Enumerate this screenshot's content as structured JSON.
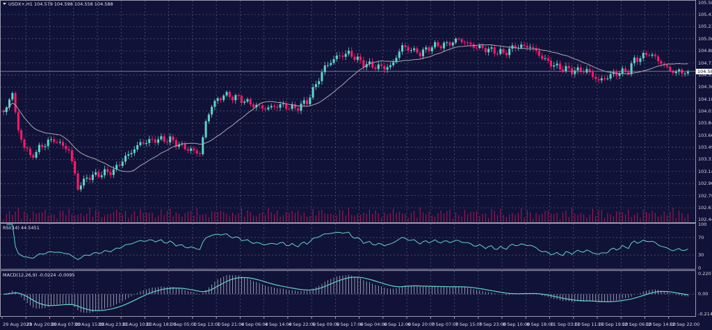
{
  "header": {
    "symbol_text": "USDX+,H1",
    "ohlc_text": "104.579 104.598 104.558 104.588"
  },
  "colors": {
    "background": "#111238",
    "bull": "#5dd6c8",
    "bear": "#ff1a6a",
    "volume": "#b0185a",
    "ma": "#a8a8b0",
    "grid": "#5a5c80",
    "indicator": "#5dd6c8"
  },
  "chart_data": [
    {
      "type": "candlestick",
      "title": "USDX+,H1",
      "current_price": "104.588",
      "ylim": [
        102.445,
        105.58
      ],
      "y_ticks": [
        "105.580",
        "105.410",
        "105.235",
        "105.060",
        "104.885",
        "104.710",
        "104.535",
        "104.360",
        "104.185",
        "104.015",
        "103.840",
        "103.665",
        "103.490",
        "103.315",
        "103.140",
        "102.965",
        "102.790",
        "102.615",
        "102.445"
      ],
      "x_ticks": [
        "29 Aug 2023",
        "29 Aug 20:00",
        "30 Aug 07:00",
        "30 Aug 15:00",
        "30 Aug 23:00",
        "31 Aug 10:00",
        "31 Aug 18:00",
        "1 Sep 05:00",
        "1 Sep 13:00",
        "1 Sep 21:00",
        "4 Sep 06:00",
        "4 Sep 14:00",
        "4 Sep 22:00",
        "5 Sep 09:00",
        "5 Sep 17:00",
        "6 Sep 04:00",
        "6 Sep 12:00",
        "6 Sep 20:00",
        "7 Sep 07:00",
        "7 Sep 15:00",
        "7 Sep 23:00",
        "8 Sep 10:00",
        "8 Sep 18:00",
        "11 Sep 03:00",
        "11 Sep 11:00",
        "11 Sep 19:00",
        "12 Sep 06:00",
        "12 Sep 14:00",
        "12 Sep 22:00"
      ],
      "close_keypoints_by_bar": [
        [
          0,
          104.0
        ],
        [
          1,
          104.05
        ],
        [
          3,
          104.3
        ],
        [
          5,
          103.7
        ],
        [
          9,
          103.35
        ],
        [
          14,
          103.55
        ],
        [
          17,
          103.6
        ],
        [
          22,
          103.45
        ],
        [
          24,
          103.1
        ],
        [
          25,
          102.9
        ],
        [
          28,
          103.05
        ],
        [
          32,
          103.1
        ],
        [
          37,
          103.15
        ],
        [
          40,
          103.3
        ],
        [
          46,
          103.55
        ],
        [
          51,
          103.6
        ],
        [
          56,
          103.6
        ],
        [
          60,
          103.5
        ],
        [
          66,
          103.4
        ],
        [
          68,
          103.85
        ],
        [
          70,
          104.1
        ],
        [
          74,
          104.25
        ],
        [
          79,
          104.2
        ],
        [
          84,
          104.1
        ],
        [
          88,
          104.05
        ],
        [
          93,
          104.1
        ],
        [
          98,
          104.05
        ],
        [
          102,
          104.15
        ],
        [
          105,
          104.4
        ],
        [
          108,
          104.65
        ],
        [
          112,
          104.8
        ],
        [
          116,
          104.85
        ],
        [
          121,
          104.7
        ],
        [
          126,
          104.65
        ],
        [
          130,
          104.65
        ],
        [
          134,
          104.95
        ],
        [
          140,
          104.85
        ],
        [
          144,
          104.95
        ],
        [
          149,
          104.98
        ],
        [
          153,
          105.05
        ],
        [
          158,
          104.95
        ],
        [
          163,
          104.9
        ],
        [
          168,
          104.85
        ],
        [
          172,
          104.95
        ],
        [
          177,
          104.95
        ],
        [
          182,
          104.75
        ],
        [
          186,
          104.65
        ],
        [
          191,
          104.6
        ],
        [
          196,
          104.6
        ],
        [
          200,
          104.45
        ],
        [
          205,
          104.55
        ],
        [
          210,
          104.6
        ],
        [
          212,
          104.75
        ],
        [
          217,
          104.85
        ],
        [
          220,
          104.75
        ],
        [
          224,
          104.6
        ],
        [
          226,
          104.58
        ],
        [
          230,
          104.588
        ]
      ],
      "moving_average_period": 20,
      "grid": true
    },
    {
      "type": "line",
      "label": "RSI(14) 44.5451",
      "ylim": [
        0,
        100
      ],
      "y_ticks": [
        "100",
        "70",
        "30",
        "0"
      ],
      "levels": [
        70,
        30
      ]
    },
    {
      "type": "bar+line",
      "label": "MACD(12,26,9) -0.0224 -0.0095",
      "ylim": [
        -0.2149,
        0.2207
      ],
      "y_ticks": [
        "0.2207",
        "0.00",
        "-0.2149"
      ]
    }
  ]
}
